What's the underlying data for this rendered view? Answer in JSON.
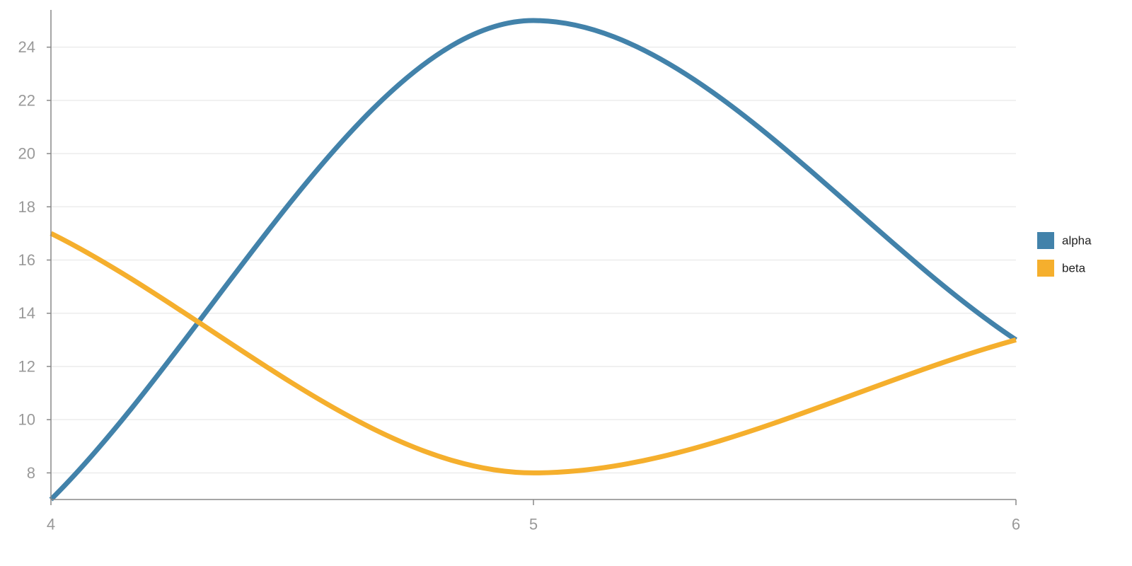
{
  "chart_data": {
    "type": "line",
    "x_ticks": [
      4,
      5,
      6
    ],
    "y_ticks": [
      8,
      10,
      12,
      14,
      16,
      18,
      20,
      22,
      24
    ],
    "xlim": [
      4,
      6
    ],
    "ylim": [
      7,
      25.4
    ],
    "grid": "horizontal",
    "legend_position": "right",
    "series": [
      {
        "name": "alpha",
        "color": "#4282aa",
        "x": [
          4,
          5,
          6
        ],
        "y": [
          7,
          25,
          13
        ]
      },
      {
        "name": "beta",
        "color": "#f5af2d",
        "x": [
          4,
          5,
          6
        ],
        "y": [
          17,
          8,
          13
        ]
      }
    ]
  }
}
